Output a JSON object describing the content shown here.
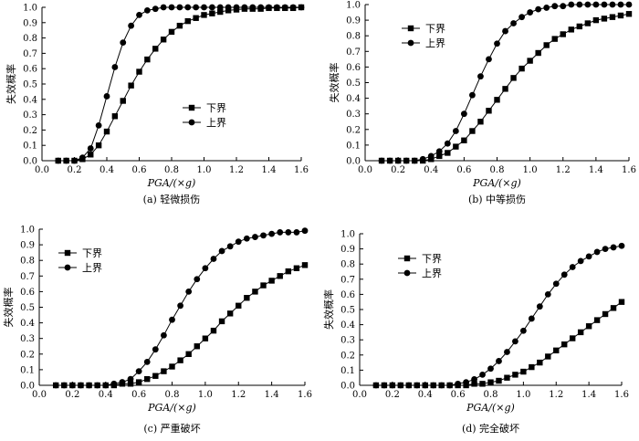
{
  "chart_data": [
    {
      "type": "line",
      "caption": "(a) 轻微损伤",
      "xlabel": "PGA/(×g)",
      "ylabel": "失效概率",
      "xlim": [
        0,
        1.6
      ],
      "ylim": [
        0,
        1.0
      ],
      "xticks": [
        "0.0",
        "0.2",
        "0.4",
        "0.6",
        "0.8",
        "1.0",
        "1.2",
        "1.4",
        "1.6"
      ],
      "yticks": [
        "0.0",
        "0.1",
        "0.2",
        "0.3",
        "0.4",
        "0.5",
        "0.6",
        "0.7",
        "0.8",
        "0.9",
        "1.0"
      ],
      "legend_position": "center-right",
      "x": [
        0.1,
        0.15,
        0.2,
        0.25,
        0.3,
        0.35,
        0.4,
        0.45,
        0.5,
        0.55,
        0.6,
        0.65,
        0.7,
        0.75,
        0.8,
        0.85,
        0.9,
        0.95,
        1.0,
        1.05,
        1.1,
        1.15,
        1.2,
        1.25,
        1.3,
        1.35,
        1.4,
        1.45,
        1.5,
        1.55,
        1.6
      ],
      "series": [
        {
          "name": "下界",
          "marker": "square",
          "values": [
            0.0,
            0.0,
            0.0,
            0.01,
            0.04,
            0.1,
            0.19,
            0.29,
            0.39,
            0.49,
            0.58,
            0.66,
            0.73,
            0.79,
            0.84,
            0.88,
            0.91,
            0.93,
            0.95,
            0.96,
            0.97,
            0.98,
            0.985,
            0.99,
            0.99,
            0.99,
            0.995,
            0.995,
            0.995,
            0.995,
            1.0
          ]
        },
        {
          "name": "上界",
          "marker": "circle",
          "values": [
            0.0,
            0.0,
            0.0,
            0.02,
            0.08,
            0.23,
            0.42,
            0.61,
            0.77,
            0.88,
            0.95,
            0.98,
            0.99,
            1.0,
            1.0,
            1.0,
            1.0,
            1.0,
            1.0,
            1.0,
            1.0,
            1.0,
            1.0,
            1.0,
            1.0,
            1.0,
            1.0,
            1.0,
            1.0,
            1.0,
            1.0
          ]
        }
      ]
    },
    {
      "type": "line",
      "caption": "(b) 中等损伤",
      "xlabel": "PGA/(×g)",
      "ylabel": "失效概率",
      "xlim": [
        0,
        1.6
      ],
      "ylim": [
        0,
        1.0
      ],
      "xticks": [
        "0.0",
        "0.2",
        "0.4",
        "0.6",
        "0.8",
        "1.0",
        "1.2",
        "1.4",
        "1.6"
      ],
      "yticks": [
        "0.0",
        "0.1",
        "0.2",
        "0.3",
        "0.4",
        "0.5",
        "0.6",
        "0.7",
        "0.8",
        "0.9",
        "1.0"
      ],
      "legend_position": "top-left",
      "x": [
        0.1,
        0.15,
        0.2,
        0.25,
        0.3,
        0.35,
        0.4,
        0.45,
        0.5,
        0.55,
        0.6,
        0.65,
        0.7,
        0.75,
        0.8,
        0.85,
        0.9,
        0.95,
        1.0,
        1.05,
        1.1,
        1.15,
        1.2,
        1.25,
        1.3,
        1.35,
        1.4,
        1.45,
        1.5,
        1.55,
        1.6
      ],
      "series": [
        {
          "name": "下界",
          "marker": "square",
          "values": [
            0.0,
            0.0,
            0.0,
            0.0,
            0.0,
            0.0,
            0.01,
            0.03,
            0.05,
            0.09,
            0.13,
            0.19,
            0.25,
            0.32,
            0.39,
            0.46,
            0.53,
            0.59,
            0.64,
            0.69,
            0.74,
            0.78,
            0.81,
            0.84,
            0.86,
            0.88,
            0.9,
            0.91,
            0.92,
            0.93,
            0.94
          ]
        },
        {
          "name": "上界",
          "marker": "circle",
          "values": [
            0.0,
            0.0,
            0.0,
            0.0,
            0.0,
            0.01,
            0.03,
            0.06,
            0.11,
            0.19,
            0.3,
            0.42,
            0.54,
            0.65,
            0.75,
            0.83,
            0.88,
            0.92,
            0.95,
            0.97,
            0.98,
            0.99,
            0.99,
            1.0,
            1.0,
            1.0,
            1.0,
            1.0,
            1.0,
            1.0,
            1.0
          ]
        }
      ]
    },
    {
      "type": "line",
      "caption": "(c) 严重破坏",
      "xlabel": "PGA/(×g)",
      "ylabel": "失效概率",
      "xlim": [
        0,
        1.6
      ],
      "ylim": [
        0,
        1.0
      ],
      "xticks": [
        "0.0",
        "0.2",
        "0.4",
        "0.6",
        "0.8",
        "1.0",
        "1.2",
        "1.4",
        "1.6"
      ],
      "yticks": [
        "0.0",
        "0.1",
        "0.2",
        "0.3",
        "0.4",
        "0.5",
        "0.6",
        "0.7",
        "0.8",
        "0.9",
        "1.0"
      ],
      "legend_position": "top-left",
      "x": [
        0.1,
        0.15,
        0.2,
        0.25,
        0.3,
        0.35,
        0.4,
        0.45,
        0.5,
        0.55,
        0.6,
        0.65,
        0.7,
        0.75,
        0.8,
        0.85,
        0.9,
        0.95,
        1.0,
        1.05,
        1.1,
        1.15,
        1.2,
        1.25,
        1.3,
        1.35,
        1.4,
        1.45,
        1.5,
        1.55,
        1.6
      ],
      "series": [
        {
          "name": "下界",
          "marker": "square",
          "values": [
            0.0,
            0.0,
            0.0,
            0.0,
            0.0,
            0.0,
            0.0,
            0.0,
            0.01,
            0.01,
            0.02,
            0.04,
            0.06,
            0.09,
            0.12,
            0.16,
            0.2,
            0.25,
            0.3,
            0.35,
            0.41,
            0.46,
            0.51,
            0.56,
            0.6,
            0.64,
            0.67,
            0.7,
            0.73,
            0.75,
            0.77
          ]
        },
        {
          "name": "上界",
          "marker": "circle",
          "values": [
            0.0,
            0.0,
            0.0,
            0.0,
            0.0,
            0.0,
            0.0,
            0.01,
            0.02,
            0.04,
            0.09,
            0.15,
            0.23,
            0.32,
            0.42,
            0.51,
            0.6,
            0.68,
            0.75,
            0.81,
            0.86,
            0.89,
            0.92,
            0.94,
            0.95,
            0.96,
            0.97,
            0.98,
            0.98,
            0.98,
            0.99
          ]
        }
      ]
    },
    {
      "type": "line",
      "caption": "(d) 完全破坏",
      "xlabel": "PGA/(×g)",
      "ylabel": "失效概率",
      "xlim": [
        0,
        1.6
      ],
      "ylim": [
        0,
        1.0
      ],
      "xticks": [
        "0.0",
        "0.2",
        "0.4",
        "0.6",
        "0.8",
        "1.0",
        "1.2",
        "1.4",
        "1.6"
      ],
      "yticks": [
        "0.0",
        "0.1",
        "0.2",
        "0.3",
        "0.4",
        "0.5",
        "0.6",
        "0.7",
        "0.8",
        "0.9",
        "1.0"
      ],
      "legend_position": "top-left",
      "x": [
        0.1,
        0.15,
        0.2,
        0.25,
        0.3,
        0.35,
        0.4,
        0.45,
        0.5,
        0.55,
        0.6,
        0.65,
        0.7,
        0.75,
        0.8,
        0.85,
        0.9,
        0.95,
        1.0,
        1.05,
        1.1,
        1.15,
        1.2,
        1.25,
        1.3,
        1.35,
        1.4,
        1.45,
        1.5,
        1.55,
        1.6
      ],
      "series": [
        {
          "name": "下界",
          "marker": "square",
          "values": [
            0.0,
            0.0,
            0.0,
            0.0,
            0.0,
            0.0,
            0.0,
            0.0,
            0.0,
            0.0,
            0.0,
            0.0,
            0.01,
            0.01,
            0.02,
            0.03,
            0.05,
            0.07,
            0.09,
            0.12,
            0.15,
            0.19,
            0.23,
            0.27,
            0.31,
            0.35,
            0.39,
            0.43,
            0.47,
            0.51,
            0.55
          ]
        },
        {
          "name": "上界",
          "marker": "circle",
          "values": [
            0.0,
            0.0,
            0.0,
            0.0,
            0.0,
            0.0,
            0.0,
            0.0,
            0.0,
            0.0,
            0.01,
            0.02,
            0.04,
            0.07,
            0.11,
            0.16,
            0.22,
            0.29,
            0.36,
            0.44,
            0.52,
            0.6,
            0.67,
            0.73,
            0.78,
            0.82,
            0.85,
            0.88,
            0.9,
            0.91,
            0.92
          ]
        }
      ]
    }
  ]
}
